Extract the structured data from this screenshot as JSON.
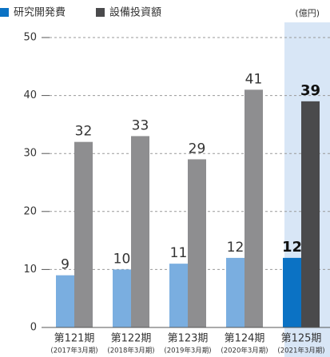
{
  "chart_data": {
    "type": "bar",
    "unit_label": "(億円)",
    "categories": [
      "第121期",
      "第122期",
      "第123期",
      "第124期",
      "第125期"
    ],
    "subcategories": [
      "(2017年3月期)",
      "(2018年3月期)",
      "(2019年3月期)",
      "(2020年3月期)",
      "(2021年3月期)"
    ],
    "series": [
      {
        "name": "研究開発費",
        "color": "#7aaee0",
        "highlight_color": "#0b72c4",
        "values": [
          9,
          10,
          11,
          12,
          12
        ]
      },
      {
        "name": "設備投資額",
        "color": "#8e8e90",
        "highlight_color": "#4a4a4c",
        "values": [
          32,
          33,
          29,
          41,
          39
        ]
      }
    ],
    "highlight_index": 4,
    "highlight_band_color": "#d8e6f6",
    "ylim": [
      0,
      50
    ],
    "yticks": [
      0,
      10,
      20,
      30,
      40,
      50
    ],
    "grid": true
  }
}
